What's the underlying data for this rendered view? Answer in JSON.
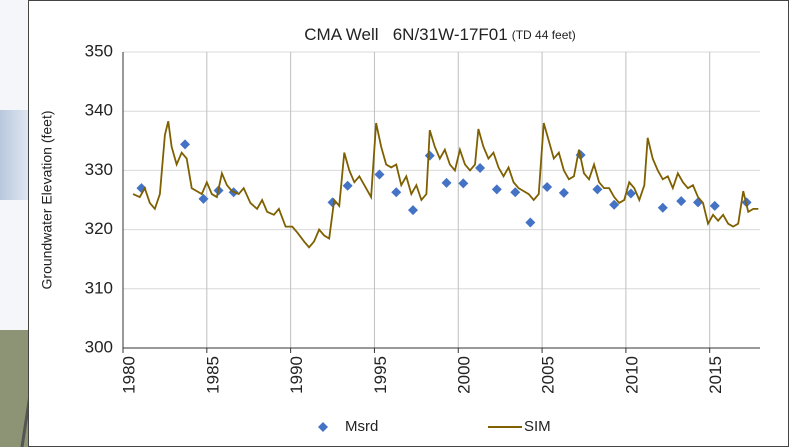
{
  "chart_data": {
    "type": "line",
    "title": "CMA Well   6N/31W-17F01",
    "subtitle": "(TD 44 feet)",
    "y_label": "Groundwater Elevation (feet)",
    "xlim": [
      1980,
      2018
    ],
    "xticks": [
      1980,
      1985,
      1990,
      1995,
      2000,
      2005,
      2010,
      2015
    ],
    "ylim": [
      300,
      350
    ],
    "yticks": [
      300,
      310,
      320,
      330,
      340,
      350
    ],
    "grid": true,
    "legend": "bottom",
    "series": [
      {
        "name": "Msrd",
        "type": "scatter",
        "color": "#4472c4",
        "x": [
          1981.1,
          1983.7,
          1984.8,
          1985.7,
          1986.6,
          1992.5,
          1993.4,
          1995.3,
          1996.3,
          1997.3,
          1998.3,
          1999.3,
          2000.3,
          2001.3,
          2002.3,
          2003.4,
          2004.3,
          2005.3,
          2006.3,
          2007.3,
          2008.3,
          2009.3,
          2010.3,
          2012.2,
          2013.3,
          2014.3,
          2015.3,
          2017.2
        ],
        "values": [
          327,
          334.4,
          325.2,
          326.6,
          326.3,
          324.6,
          327.4,
          329.3,
          326.3,
          323.3,
          332.5,
          327.9,
          327.8,
          330.4,
          326.8,
          326.3,
          321.2,
          327.2,
          326.2,
          332.6,
          326.8,
          324.2,
          326.1,
          323.7,
          324.8,
          324.6,
          324,
          324.6
        ]
      },
      {
        "name": "SIM",
        "type": "line",
        "color": "#7f6000",
        "x": [
          1980.6,
          1981,
          1981.3,
          1981.6,
          1981.9,
          1982.2,
          1982.5,
          1982.7,
          1982.9,
          1983.2,
          1983.5,
          1983.8,
          1984.1,
          1984.4,
          1984.7,
          1985,
          1985.3,
          1985.6,
          1985.9,
          1986.2,
          1986.5,
          1986.9,
          1987.2,
          1987.6,
          1988,
          1988.3,
          1988.6,
          1989,
          1989.3,
          1989.7,
          1990.1,
          1990.4,
          1990.8,
          1991.1,
          1991.4,
          1991.7,
          1992,
          1992.3,
          1992.6,
          1992.9,
          1993.2,
          1993.5,
          1993.8,
          1994.1,
          1994.5,
          1994.8,
          1995.1,
          1995.4,
          1995.7,
          1996,
          1996.3,
          1996.6,
          1996.9,
          1997.2,
          1997.5,
          1997.8,
          1998.1,
          1998.3,
          1998.6,
          1998.9,
          1999.2,
          1999.5,
          1999.8,
          2000.1,
          2000.4,
          2000.7,
          2001,
          2001.2,
          2001.5,
          2001.8,
          2002.1,
          2002.4,
          2002.7,
          2003,
          2003.3,
          2003.6,
          2003.9,
          2004.2,
          2004.5,
          2004.8,
          2005.1,
          2005.4,
          2005.7,
          2006,
          2006.3,
          2006.6,
          2006.9,
          2007.2,
          2007.5,
          2007.8,
          2008.1,
          2008.4,
          2008.7,
          2009,
          2009.3,
          2009.6,
          2009.9,
          2010.2,
          2010.5,
          2010.8,
          2011.1,
          2011.3,
          2011.6,
          2011.9,
          2012.2,
          2012.5,
          2012.8,
          2013.1,
          2013.4,
          2013.7,
          2014,
          2014.3,
          2014.6,
          2014.9,
          2015.2,
          2015.5,
          2015.8,
          2016.1,
          2016.4,
          2016.7,
          2017,
          2017.3,
          2017.6,
          2017.9
        ],
        "values": [
          326,
          325.5,
          327,
          324.5,
          323.5,
          326,
          336,
          338.3,
          334,
          331,
          333,
          332,
          327,
          326.5,
          326,
          328,
          326,
          325.5,
          329.5,
          327.5,
          326.5,
          326,
          327,
          324.5,
          323.5,
          325,
          323,
          322.5,
          323.5,
          320.5,
          320.5,
          319.5,
          318,
          317,
          318,
          320,
          319,
          318.5,
          325,
          324,
          333,
          330,
          328,
          329,
          327,
          325.5,
          338,
          334,
          331,
          330.5,
          331,
          327.5,
          329,
          326,
          327.5,
          325,
          326,
          336.8,
          334,
          332,
          333.5,
          331,
          330,
          333.5,
          331,
          330,
          331,
          337,
          334,
          332,
          333,
          330.5,
          329,
          330.5,
          328,
          327,
          326.5,
          326,
          325,
          326,
          338,
          335,
          332,
          333,
          330,
          328.5,
          329,
          333.5,
          329.5,
          328.5,
          331,
          328,
          327,
          327,
          325.5,
          324.5,
          325,
          328,
          327,
          325,
          327.5,
          335.5,
          332,
          330,
          328.5,
          329,
          327,
          329.5,
          328,
          327,
          327.5,
          325.5,
          324.5,
          321,
          322.5,
          321.5,
          322.5,
          321,
          320.5,
          321,
          326.5,
          323,
          323.5,
          323.5
        ]
      }
    ]
  }
}
